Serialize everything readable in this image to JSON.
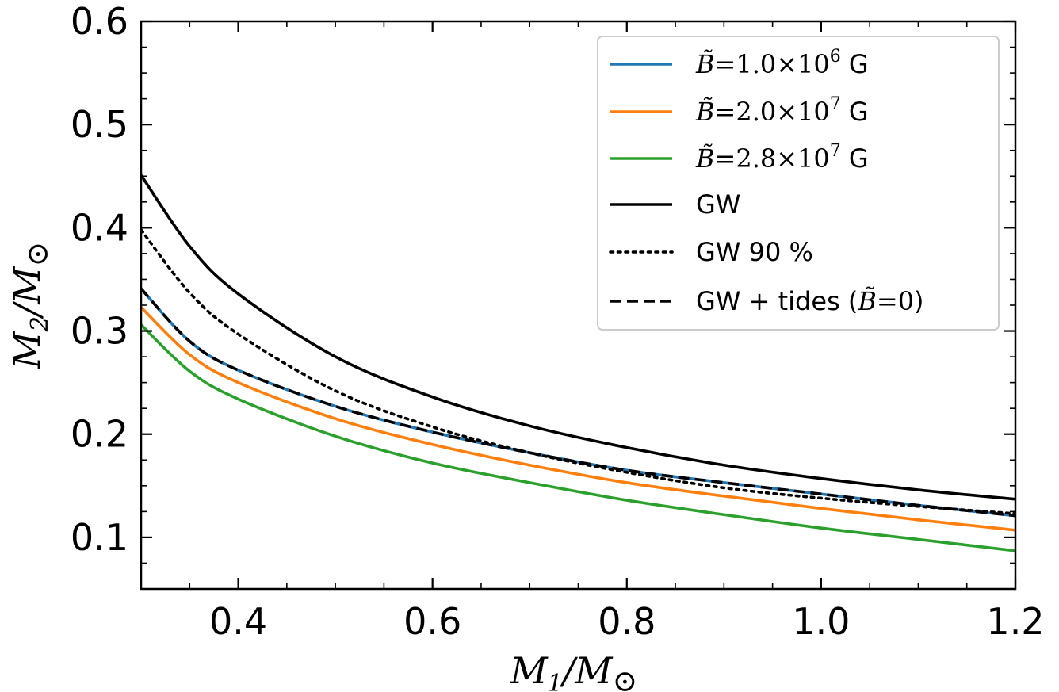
{
  "chart_data": {
    "type": "line",
    "xlabel": "M1/M⊙",
    "ylabel": "M2/M⊙",
    "xlim": [
      0.3,
      1.2
    ],
    "ylim": [
      0.05,
      0.6
    ],
    "xticks": [
      0.4,
      0.6,
      0.8,
      1.0,
      1.2
    ],
    "xtick_labels": [
      "0.4",
      "0.6",
      "0.8",
      "1.0",
      "1.2"
    ],
    "yticks": [
      0.1,
      0.2,
      0.3,
      0.4,
      0.5,
      0.6
    ],
    "ytick_labels": [
      "0.1",
      "0.2",
      "0.3",
      "0.4",
      "0.5",
      "0.6"
    ],
    "legend_position": "top-right",
    "grid": false,
    "x": [
      0.3,
      0.35,
      0.4,
      0.5,
      0.6,
      0.7,
      0.8,
      0.9,
      1.0,
      1.1,
      1.2
    ],
    "series": [
      {
        "name": "B̃ = 1.0 × 10⁶ G",
        "label_parts": {
          "coef": "1.0",
          "exp": "6",
          "unit": "G"
        },
        "color": "#1f77b4",
        "style": "solid",
        "values": [
          0.341,
          0.29,
          0.262,
          0.227,
          0.202,
          0.182,
          0.165,
          0.153,
          0.142,
          0.131,
          0.121
        ]
      },
      {
        "name": "B̃ = 2.0 × 10⁷ G",
        "label_parts": {
          "coef": "2.0",
          "exp": "7",
          "unit": "G"
        },
        "color": "#ff7f0e",
        "style": "solid",
        "values": [
          0.323,
          0.277,
          0.25,
          0.215,
          0.19,
          0.17,
          0.153,
          0.14,
          0.128,
          0.117,
          0.107
        ]
      },
      {
        "name": "B̃ = 2.8 × 10⁷ G",
        "label_parts": {
          "coef": "2.8",
          "exp": "7",
          "unit": "G"
        },
        "color": "#2ca02c",
        "style": "solid",
        "values": [
          0.306,
          0.261,
          0.234,
          0.198,
          0.172,
          0.153,
          0.136,
          0.122,
          0.109,
          0.098,
          0.087
        ]
      },
      {
        "name": "GW",
        "color": "#000000",
        "style": "solid",
        "values": [
          0.451,
          0.382,
          0.336,
          0.275,
          0.236,
          0.208,
          0.187,
          0.17,
          0.157,
          0.146,
          0.137
        ]
      },
      {
        "name": "GW 90 %",
        "color": "#000000",
        "style": "dotted",
        "values": [
          0.398,
          0.337,
          0.297,
          0.242,
          0.207,
          0.182,
          0.163,
          0.148,
          0.138,
          0.13,
          0.123
        ]
      },
      {
        "name": "GW + tides (B̃=0)",
        "label_parts": {
          "prefix": "GW + tides (",
          "value": "0",
          "suffix": ")"
        },
        "color": "#000000",
        "style": "dashed",
        "values": [
          0.341,
          0.29,
          0.262,
          0.227,
          0.202,
          0.182,
          0.165,
          0.153,
          0.142,
          0.131,
          0.121
        ]
      }
    ]
  }
}
